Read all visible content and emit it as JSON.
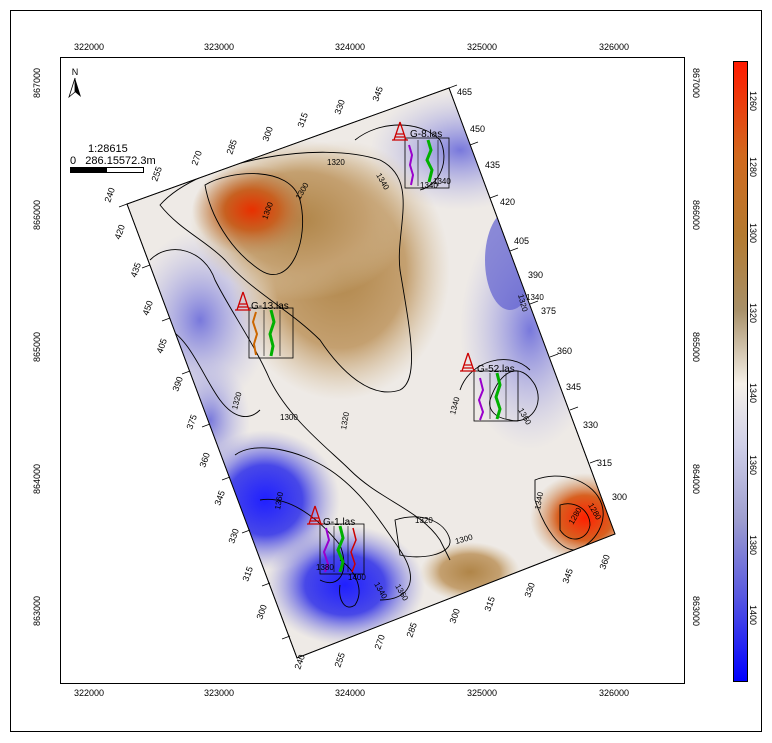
{
  "map": {
    "scale_ratio": "1:28615",
    "scale_bar_label": "0   286.15572.3m",
    "x_ticks": [
      "322000",
      "323000",
      "324000",
      "325000",
      "326000"
    ],
    "y_ticks": [
      "867000",
      "866000",
      "865000",
      "864000",
      "863000"
    ],
    "north_label": "N",
    "colorbar_labels": [
      "1260",
      "1280",
      "1300",
      "1320",
      "1340",
      "1360",
      "1380",
      "1400"
    ],
    "wells": [
      {
        "name": "G-8.las"
      },
      {
        "name": "G-13.las"
      },
      {
        "name": "G-52.las"
      },
      {
        "name": "G-1.las"
      }
    ],
    "contour_labels": [
      "1320",
      "1300",
      "1300",
      "1340",
      "1340",
      "1320",
      "1320",
      "1300",
      "1320",
      "1340",
      "1360",
      "1280",
      "1340",
      "1360",
      "1380",
      "1400",
      "1340",
      "1360",
      "1320",
      "1300",
      "1280",
      "1340",
      "1340"
    ],
    "grid_labels_a": [
      "240",
      "255",
      "270",
      "285",
      "300",
      "315",
      "330",
      "345",
      "360",
      "375",
      "390",
      "405",
      "420",
      "435",
      "450",
      "465"
    ],
    "grid_labels_b": [
      "240",
      "255",
      "270",
      "285",
      "300",
      "315",
      "330",
      "345",
      "360",
      "375",
      "390",
      "405",
      "420",
      "435",
      "450",
      "465"
    ]
  },
  "colors": {
    "high": "#ff1a00",
    "brown": "#b47a30",
    "neutral": "#f5f0e8",
    "low": "#0000ff",
    "well_symbol": "#cc0000",
    "log_green": "#00b000",
    "log_purple": "#9900cc",
    "log_orange": "#cc6600"
  }
}
